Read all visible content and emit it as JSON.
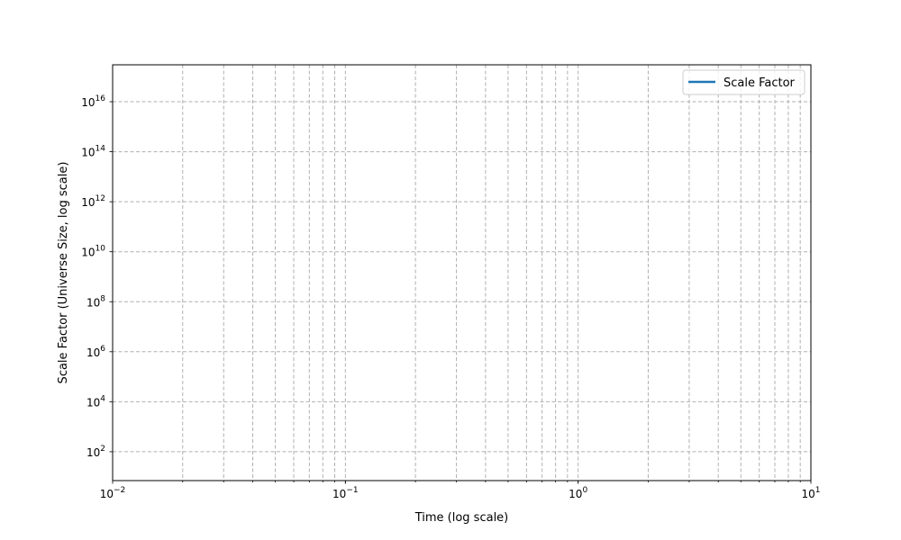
{
  "chart_data": {
    "type": "line",
    "title": "",
    "xlabel": "Time (log scale)",
    "ylabel": "Scale Factor (Universe Size, log scale)",
    "xscale": "log",
    "yscale": "log",
    "xlim": [
      0.01,
      10
    ],
    "ylim": [
      7,
      3e+17
    ],
    "x_ticks": [
      {
        "value": 0.01,
        "base": "10",
        "exp": "−2"
      },
      {
        "value": 0.1,
        "base": "10",
        "exp": "−1"
      },
      {
        "value": 1,
        "base": "10",
        "exp": "0"
      },
      {
        "value": 10,
        "base": "10",
        "exp": "1"
      }
    ],
    "y_ticks": [
      {
        "value": 100.0,
        "base": "10",
        "exp": "2"
      },
      {
        "value": 10000.0,
        "base": "10",
        "exp": "4"
      },
      {
        "value": 1000000.0,
        "base": "10",
        "exp": "6"
      },
      {
        "value": 100000000.0,
        "base": "10",
        "exp": "8"
      },
      {
        "value": 10000000000.0,
        "base": "10",
        "exp": "10"
      },
      {
        "value": 1000000000000.0,
        "base": "10",
        "exp": "12"
      },
      {
        "value": 100000000000000.0,
        "base": "10",
        "exp": "14"
      },
      {
        "value": 1e+16,
        "base": "10",
        "exp": "16"
      }
    ],
    "grid": true,
    "grid_style": "dashed",
    "legend_position": "top-right",
    "series": [
      {
        "name": "Scale Factor",
        "color": "#1f77b4",
        "x": [],
        "y": []
      }
    ]
  }
}
